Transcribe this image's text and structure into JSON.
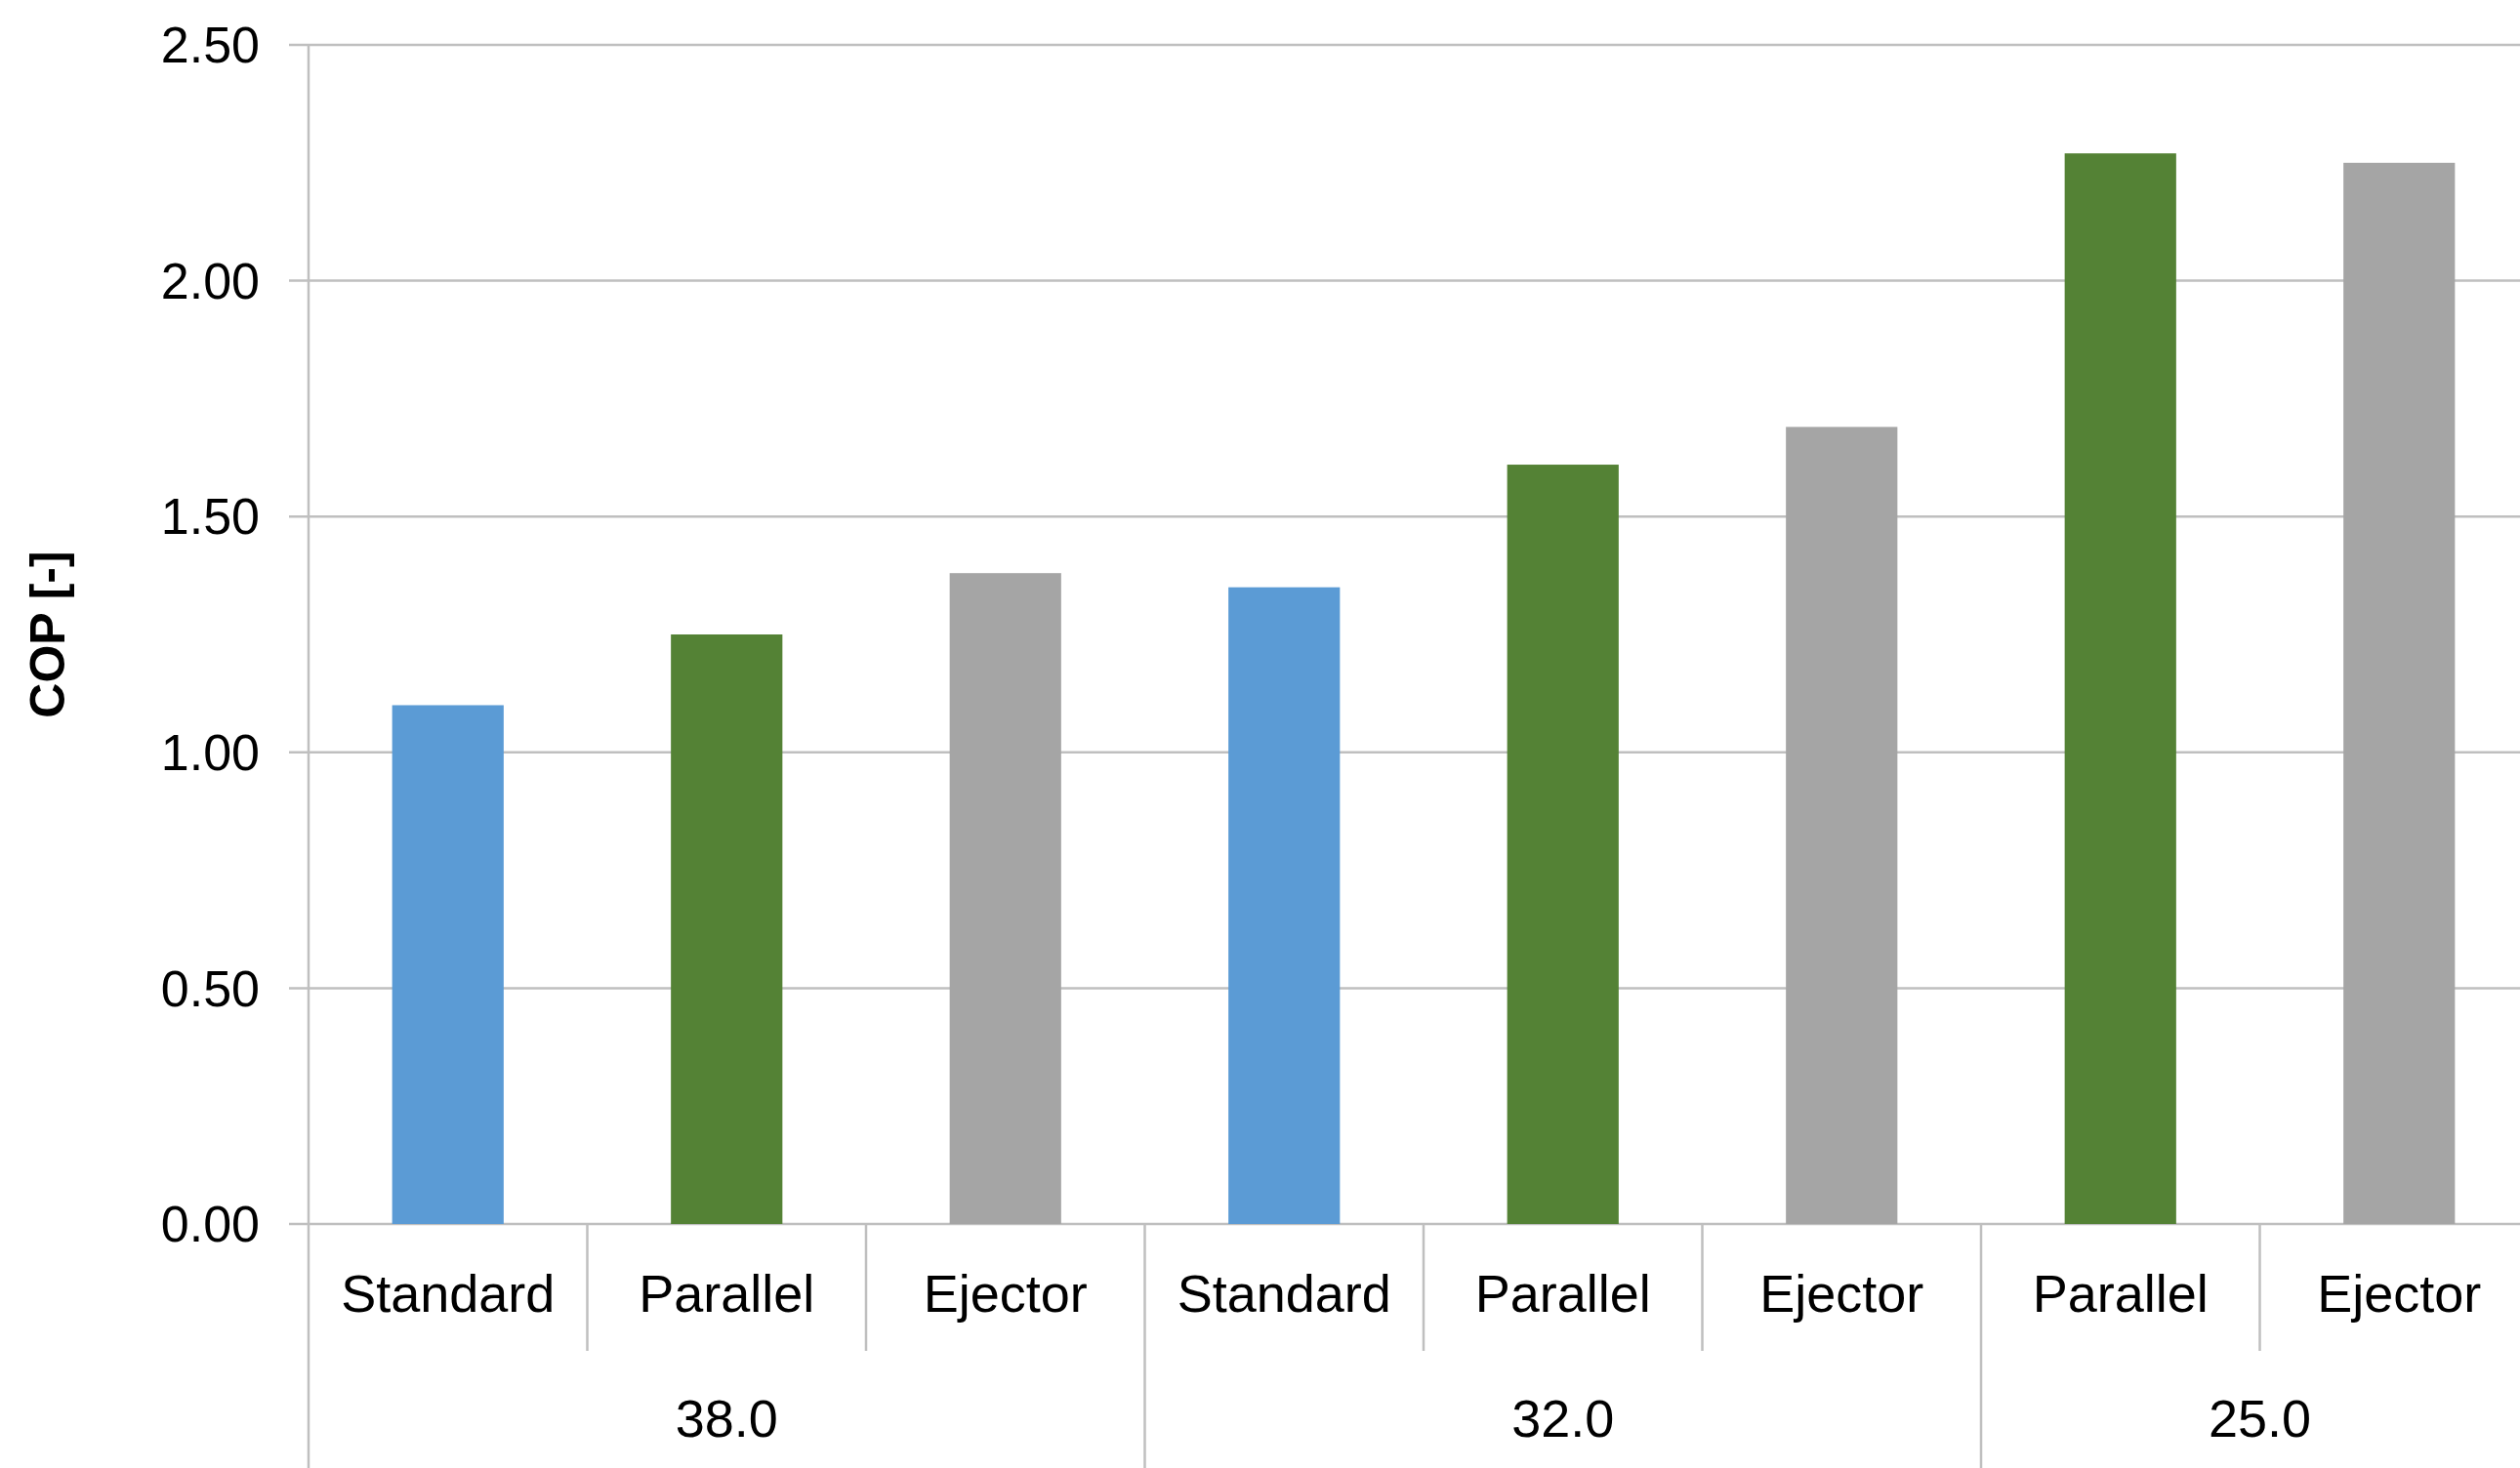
{
  "chart_data": {
    "type": "bar",
    "ylabel": "COP [-]",
    "categories": [
      "Standard",
      "Parallel",
      "Ejector",
      "Standard",
      "Parallel",
      "Ejector",
      "Parallel",
      "Ejector"
    ],
    "values": [
      1.1,
      1.25,
      1.38,
      1.35,
      1.61,
      1.69,
      2.27,
      2.25
    ],
    "colors": [
      "#5b9bd5",
      "#548235",
      "#a5a5a5",
      "#5b9bd5",
      "#548235",
      "#a5a5a5",
      "#548235",
      "#a5a5a5"
    ],
    "ylim": [
      0,
      2.5
    ],
    "yticks": [
      {
        "value": 0,
        "label": "0.00"
      },
      {
        "value": 0.5,
        "label": "0.50"
      },
      {
        "value": 1,
        "label": "1.00"
      },
      {
        "value": 1.5,
        "label": "1.50"
      },
      {
        "value": 2,
        "label": "2.00"
      },
      {
        "value": 2.5,
        "label": "2.50"
      }
    ],
    "grid": "y",
    "annotations": [
      "38.0",
      "32.0",
      "25.0"
    ]
  }
}
